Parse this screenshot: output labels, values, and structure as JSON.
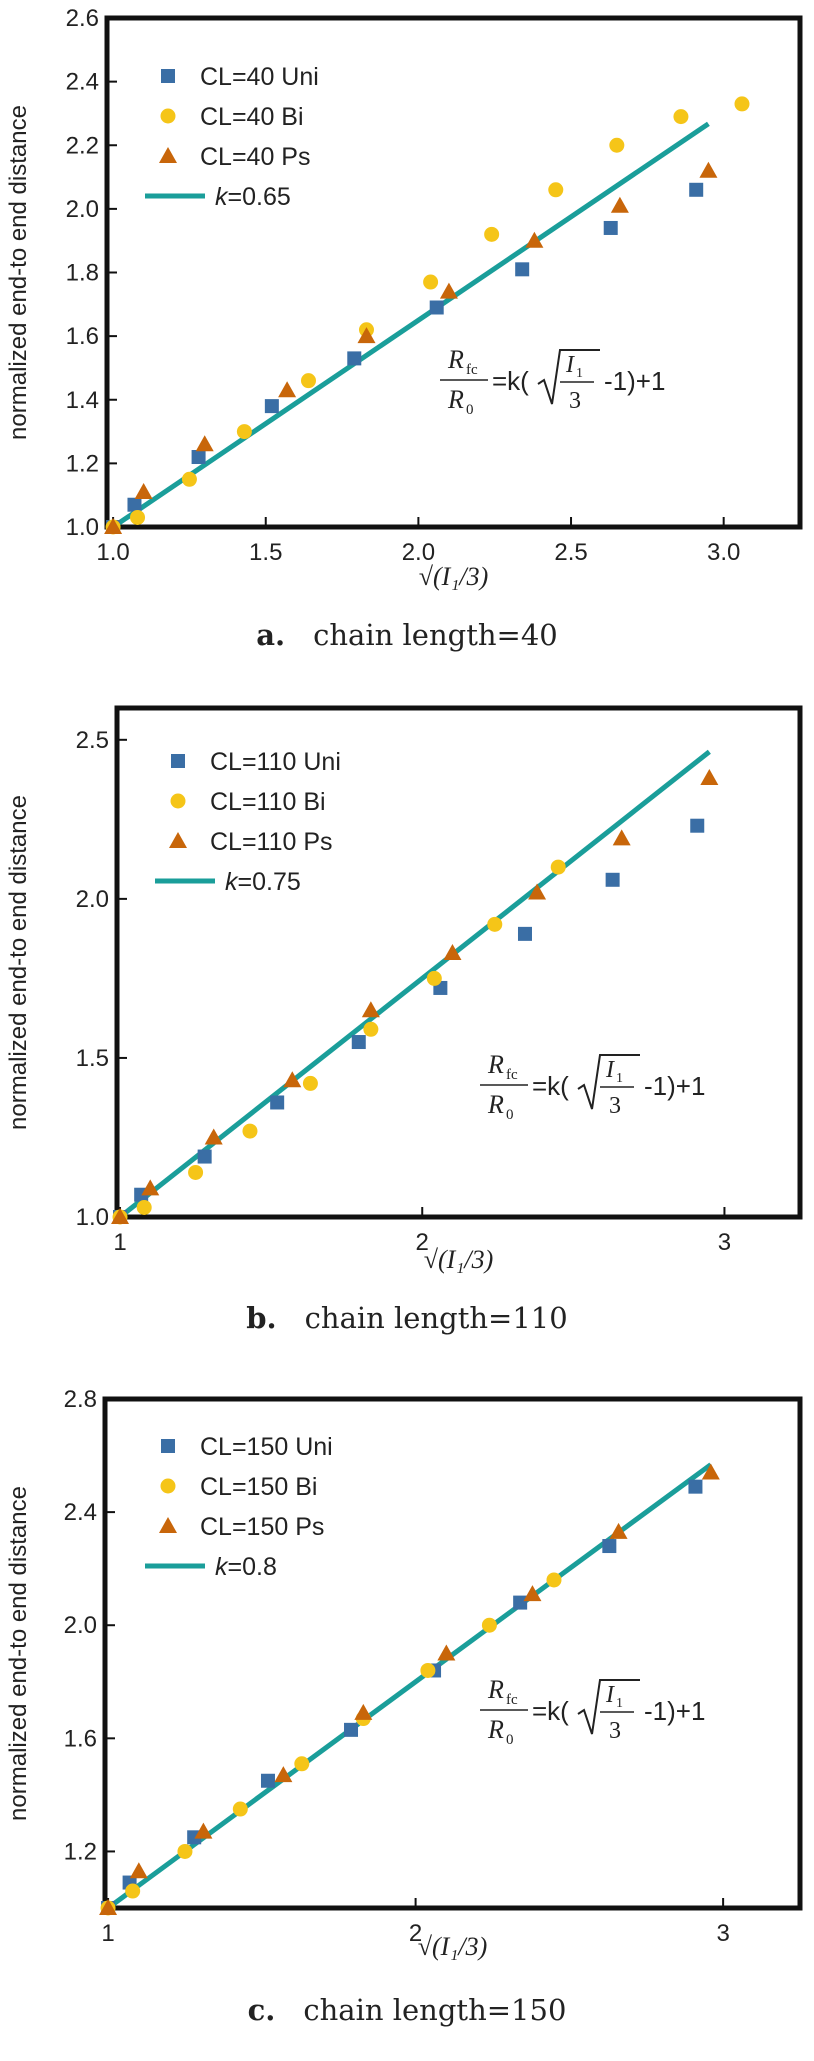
{
  "colors": {
    "uni": "#3a6ea5",
    "bi": "#f5c518",
    "ps": "#c8660a",
    "fit": "#1a9e9a",
    "axis": "#111111",
    "text": "#222222"
  },
  "chart_data": [
    {
      "type": "scatter",
      "panel": "a",
      "caption_label": "a.",
      "caption_text": "chain length=40",
      "xlabel": "√(I₁/3)",
      "ylabel": "normalized end-to end distance",
      "xlim": [
        0.98,
        3.25
      ],
      "ylim": [
        1.0,
        2.6
      ],
      "xticks": [
        1.0,
        1.5,
        2.0,
        2.5,
        3.0
      ],
      "xtick_labels": [
        "1.0",
        "1.5",
        "2.0",
        "2.5",
        "3.0"
      ],
      "yticks": [
        1.0,
        1.2,
        1.4,
        1.6,
        1.8,
        2.0,
        2.2,
        2.4,
        2.6
      ],
      "ytick_labels": [
        "1.0",
        "1.2",
        "1.4",
        "1.6",
        "1.8",
        "2.0",
        "2.2",
        "2.4",
        "2.6"
      ],
      "legend_position": "top-left",
      "fit": {
        "k_label": "k",
        "k_value": "=0.65",
        "k": 0.65,
        "x_range": [
          1.0,
          2.95
        ]
      },
      "equation": {
        "lhs_num": "R",
        "lhs_num_sub": "fc",
        "lhs_den": "R",
        "lhs_den_sub": "0",
        "rhs_prefix": "=k(",
        "frac_num": "I",
        "frac_num_sub": "1",
        "frac_den": "3",
        "rhs_suffix": "-1)+1"
      },
      "series": [
        {
          "name": "CL=40 Uni",
          "marker": "square",
          "x": [
            1.0,
            1.07,
            1.28,
            1.52,
            1.79,
            2.06,
            2.34,
            2.63,
            2.91
          ],
          "y": [
            1.0,
            1.07,
            1.22,
            1.38,
            1.53,
            1.69,
            1.81,
            1.94,
            2.06
          ]
        },
        {
          "name": "CL=40 Bi",
          "marker": "circle",
          "x": [
            1.0,
            1.08,
            1.25,
            1.43,
            1.64,
            1.83,
            2.04,
            2.24,
            2.45,
            2.65,
            2.86,
            3.06
          ],
          "y": [
            1.0,
            1.03,
            1.15,
            1.3,
            1.46,
            1.62,
            1.77,
            1.92,
            2.06,
            2.2,
            2.29,
            2.33
          ]
        },
        {
          "name": "CL=40 Ps",
          "marker": "triangle",
          "x": [
            1.0,
            1.1,
            1.3,
            1.57,
            1.83,
            2.1,
            2.38,
            2.66,
            2.95
          ],
          "y": [
            1.0,
            1.11,
            1.26,
            1.43,
            1.6,
            1.74,
            1.9,
            2.01,
            2.12
          ]
        }
      ]
    },
    {
      "type": "scatter",
      "panel": "b",
      "caption_label": "b.",
      "caption_text": "chain length=110",
      "xlabel": "√(I₁/3)",
      "ylabel": "normalized end-to end distance",
      "xlim": [
        0.99,
        3.25
      ],
      "ylim": [
        1.0,
        2.6
      ],
      "xticks": [
        1,
        2,
        3
      ],
      "xtick_labels": [
        "1",
        "2",
        "3"
      ],
      "yticks": [
        1.0,
        1.5,
        2.0,
        2.5
      ],
      "ytick_labels": [
        "1.0",
        "1.5",
        "2.0",
        "2.5"
      ],
      "legend_position": "top-left",
      "fit": {
        "k_label": "k",
        "k_value": "=0.75",
        "k": 0.75,
        "x_range": [
          1.0,
          2.95
        ]
      },
      "equation": {
        "lhs_num": "R",
        "lhs_num_sub": "fc",
        "lhs_den": "R",
        "lhs_den_sub": "0",
        "rhs_prefix": "=k(",
        "frac_num": "I",
        "frac_num_sub": "1",
        "frac_den": "3",
        "rhs_suffix": "-1)+1"
      },
      "series": [
        {
          "name": "CL=110 Uni",
          "marker": "square",
          "x": [
            1.0,
            1.07,
            1.28,
            1.52,
            1.79,
            2.06,
            2.34,
            2.63,
            2.91
          ],
          "y": [
            1.0,
            1.07,
            1.19,
            1.36,
            1.55,
            1.72,
            1.89,
            2.06,
            2.23
          ]
        },
        {
          "name": "CL=110 Bi",
          "marker": "circle",
          "x": [
            1.0,
            1.08,
            1.25,
            1.43,
            1.63,
            1.83,
            2.04,
            2.24,
            2.45
          ],
          "y": [
            1.0,
            1.03,
            1.14,
            1.27,
            1.42,
            1.59,
            1.75,
            1.92,
            2.1
          ]
        },
        {
          "name": "CL=110 Ps",
          "marker": "triangle",
          "x": [
            1.0,
            1.1,
            1.31,
            1.57,
            1.83,
            2.1,
            2.38,
            2.66,
            2.95
          ],
          "y": [
            1.0,
            1.09,
            1.25,
            1.43,
            1.65,
            1.83,
            2.02,
            2.19,
            2.38
          ]
        }
      ]
    },
    {
      "type": "scatter",
      "panel": "c",
      "caption_label": "c.",
      "caption_text": "chain length=150",
      "xlabel": "√(I₁/3)",
      "ylabel": "normalized end-to end distance",
      "xlim": [
        0.99,
        3.25
      ],
      "ylim": [
        1.0,
        2.8
      ],
      "xticks": [
        1,
        2,
        3
      ],
      "xtick_labels": [
        "1",
        "2",
        "3"
      ],
      "yticks": [
        1.2,
        1.6,
        2.0,
        2.4,
        2.8
      ],
      "ytick_labels": [
        "1.2",
        "1.6",
        "2.0",
        "2.4",
        "2.8"
      ],
      "legend_position": "top-left",
      "fit": {
        "k_label": "k",
        "k_value": "=0.8",
        "k": 0.8,
        "x_range": [
          1.0,
          2.96
        ]
      },
      "equation": {
        "lhs_num": "R",
        "lhs_num_sub": "fc",
        "lhs_den": "R",
        "lhs_den_sub": "0",
        "rhs_prefix": "=k(",
        "frac_num": "I",
        "frac_num_sub": "1",
        "frac_den": "3",
        "rhs_suffix": "-1)+1"
      },
      "series": [
        {
          "name": "CL=150 Uni",
          "marker": "square",
          "x": [
            1.0,
            1.07,
            1.28,
            1.52,
            1.79,
            2.06,
            2.34,
            2.63,
            2.91
          ],
          "y": [
            1.0,
            1.09,
            1.25,
            1.45,
            1.63,
            1.84,
            2.08,
            2.28,
            2.49
          ]
        },
        {
          "name": "CL=150 Bi",
          "marker": "circle",
          "x": [
            1.0,
            1.08,
            1.25,
            1.43,
            1.63,
            1.83,
            2.04,
            2.24,
            2.45
          ],
          "y": [
            1.0,
            1.06,
            1.2,
            1.35,
            1.51,
            1.67,
            1.84,
            2.0,
            2.16
          ]
        },
        {
          "name": "CL=150 Ps",
          "marker": "triangle",
          "x": [
            1.0,
            1.1,
            1.31,
            1.57,
            1.83,
            2.1,
            2.38,
            2.66,
            2.96
          ],
          "y": [
            1.0,
            1.13,
            1.27,
            1.47,
            1.69,
            1.9,
            2.11,
            2.33,
            2.54
          ]
        }
      ]
    }
  ]
}
